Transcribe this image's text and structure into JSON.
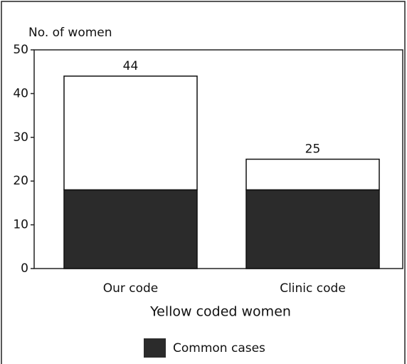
{
  "chart_data": {
    "type": "stacked-bar",
    "y_label": "No. of women",
    "x_label": "Yellow coded women",
    "categories": [
      "Our code",
      "Clinic code"
    ],
    "series": [
      {
        "name": "Common cases",
        "color": "#2b2b2b",
        "values": [
          18,
          18
        ]
      },
      {
        "color": "#ffffff",
        "values": [
          26,
          7
        ]
      }
    ],
    "totals": [
      44,
      25
    ],
    "ylim": [
      0,
      50
    ],
    "yticks": [
      0,
      10,
      20,
      30,
      40,
      50
    ],
    "legend": "bottom"
  }
}
